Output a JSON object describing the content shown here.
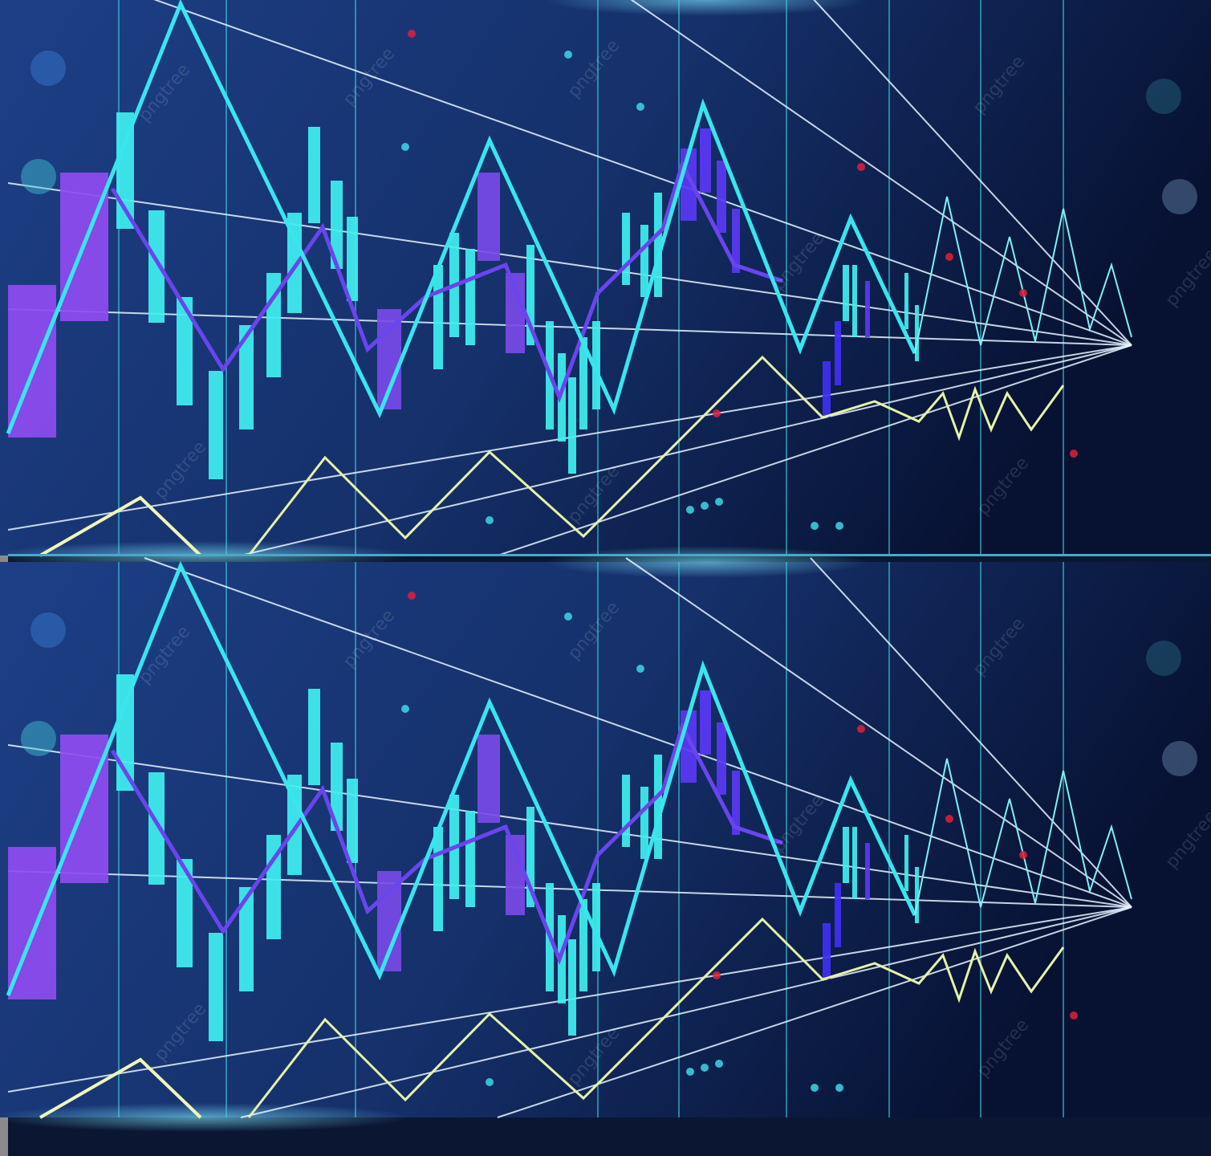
{
  "watermark": "pngtree"
}
